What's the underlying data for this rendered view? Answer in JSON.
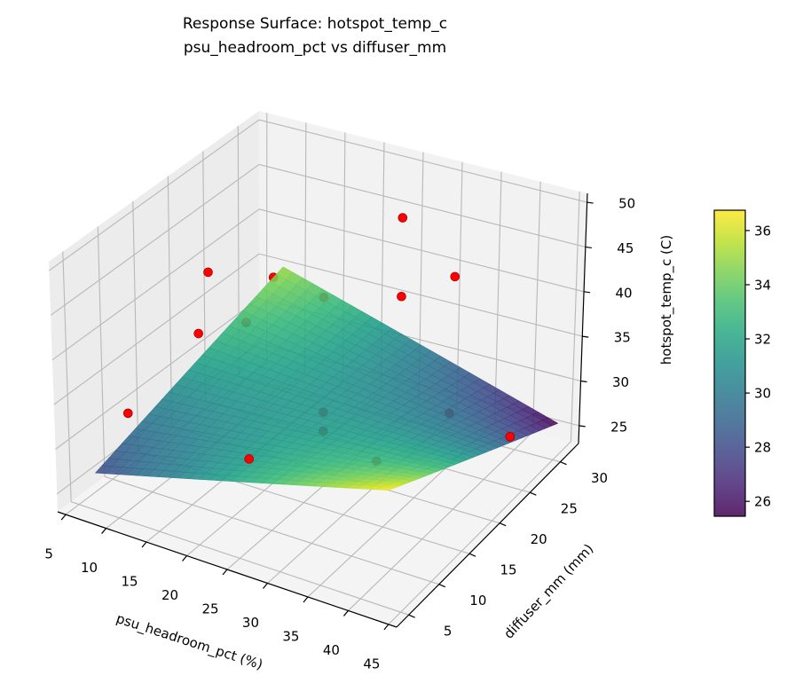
{
  "chart_data": {
    "type": "surface3d",
    "title": "Response Surface: hotspot_temp_c",
    "subtitle": "psu_headroom_pct vs diffuser_mm",
    "xlabel": "psu_headroom_pct (%)",
    "ylabel": "diffuser_mm (mm)",
    "zlabel": "hotspot_temp_c (C)",
    "xlim": [
      4,
      46
    ],
    "ylim": [
      3,
      33
    ],
    "zlim": [
      23,
      51
    ],
    "xticks": [
      5,
      10,
      15,
      20,
      25,
      30,
      35,
      40,
      45
    ],
    "yticks": [
      5,
      10,
      15,
      20,
      25,
      30
    ],
    "zticks": [
      25,
      30,
      35,
      40,
      45,
      50
    ],
    "grid": true,
    "colormap": "viridis",
    "surface": {
      "x_range": [
        8,
        44
      ],
      "y_range": [
        4,
        32
      ],
      "corner_values": {
        "xmin_ymin": 28.0,
        "xmax_ymin": 36.8,
        "xmax_ymax": 25.5,
        "xmin_ymax": 35.0
      }
    },
    "points": [
      {
        "x": 25,
        "y": 30,
        "z": 45.5
      },
      {
        "x": 25,
        "y": 30,
        "z": 36.7
      },
      {
        "x": 33,
        "y": 28.5,
        "z": 41.7
      },
      {
        "x": 8,
        "y": 21,
        "z": 40.7
      },
      {
        "x": 8,
        "y": 9,
        "z": 31.8
      },
      {
        "x": 23,
        "y": 9,
        "z": 31.0
      },
      {
        "x": 44,
        "y": 24,
        "z": 29.4
      },
      {
        "x": 12.4,
        "y": 25.5,
        "z": 38.6
      },
      {
        "x": 25,
        "y": 18,
        "z": 44.0
      },
      {
        "x": 15.3,
        "y": 18,
        "z": 38.7
      },
      {
        "x": 8,
        "y": 19.5,
        "z": 34.7
      },
      {
        "x": 25,
        "y": 18,
        "z": 31.2
      },
      {
        "x": 25,
        "y": 18,
        "z": 29.1
      },
      {
        "x": 37.6,
        "y": 10.5,
        "z": 33.9
      },
      {
        "x": 39.7,
        "y": 19.5,
        "z": 33.9
      }
    ],
    "point_color": "#ff0000",
    "colorbar": {
      "label": "hotspot_temp_c (C)",
      "range": [
        25.45,
        36.75
      ],
      "ticks": [
        26,
        28,
        30,
        32,
        34,
        36
      ]
    }
  }
}
